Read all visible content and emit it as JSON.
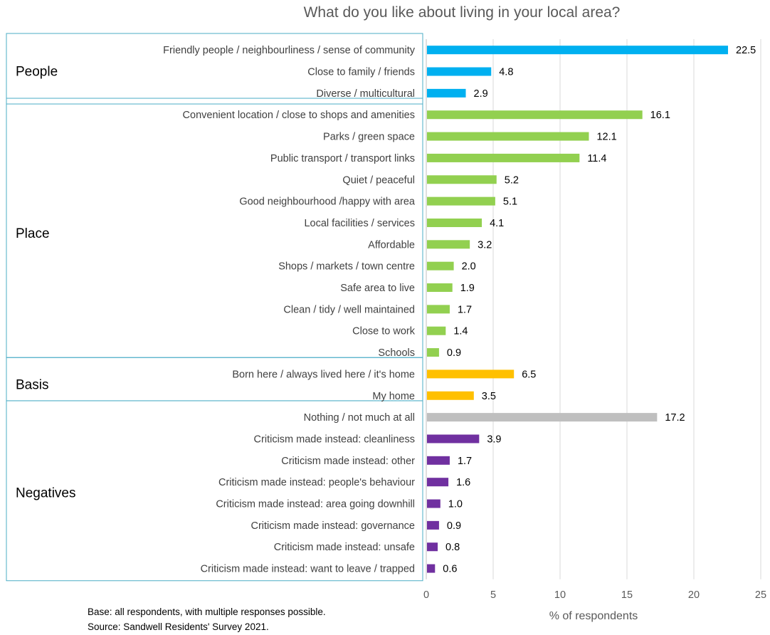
{
  "chart_data": {
    "type": "bar",
    "orientation": "horizontal",
    "title": "What do you like about living in your local area?",
    "xlabel": "% of respondents",
    "xlim": [
      0,
      25
    ],
    "xticks": [
      "0",
      "5",
      "10",
      "15",
      "20",
      "25"
    ],
    "grid": true,
    "colors": {
      "People": "#00b0f0",
      "Place": "#92d050",
      "Basis": "#ffc000",
      "Nothing": "#bfbfbf",
      "Negatives": "#7030a0",
      "group_border": "#4bacc6"
    },
    "groups": [
      {
        "name": "People",
        "items": [
          {
            "label": "Friendly people / neighbourliness / sense of community",
            "value": 22.5,
            "value_label": "22.5",
            "color": "People"
          },
          {
            "label": "Close to family / friends",
            "value": 4.8,
            "value_label": "4.8",
            "color": "People"
          },
          {
            "label": "Diverse / multicultural",
            "value": 2.9,
            "value_label": "2.9",
            "color": "People"
          }
        ]
      },
      {
        "name": "Place",
        "items": [
          {
            "label": "Convenient location / close to shops and amenities",
            "value": 16.1,
            "value_label": "16.1",
            "color": "Place"
          },
          {
            "label": "Parks / green space",
            "value": 12.1,
            "value_label": "12.1",
            "color": "Place"
          },
          {
            "label": "Public transport / transport links",
            "value": 11.4,
            "value_label": "11.4",
            "color": "Place"
          },
          {
            "label": "Quiet / peaceful",
            "value": 5.2,
            "value_label": "5.2",
            "color": "Place"
          },
          {
            "label": "Good neighbourhood /happy with area",
            "value": 5.1,
            "value_label": "5.1",
            "color": "Place"
          },
          {
            "label": "Local facilities / services",
            "value": 4.1,
            "value_label": "4.1",
            "color": "Place"
          },
          {
            "label": "Affordable",
            "value": 3.2,
            "value_label": "3.2",
            "color": "Place"
          },
          {
            "label": "Shops / markets / town centre",
            "value": 2.0,
            "value_label": "2.0",
            "color": "Place"
          },
          {
            "label": "Safe area to live",
            "value": 1.9,
            "value_label": "1.9",
            "color": "Place"
          },
          {
            "label": "Clean / tidy / well maintained",
            "value": 1.7,
            "value_label": "1.7",
            "color": "Place"
          },
          {
            "label": "Close to work",
            "value": 1.4,
            "value_label": "1.4",
            "color": "Place"
          },
          {
            "label": "Schools",
            "value": 0.9,
            "value_label": "0.9",
            "color": "Place"
          }
        ]
      },
      {
        "name": "Basis",
        "items": [
          {
            "label": "Born here / always lived here / it's home",
            "value": 6.5,
            "value_label": "6.5",
            "color": "Basis"
          },
          {
            "label": "My home",
            "value": 3.5,
            "value_label": "3.5",
            "color": "Basis"
          }
        ]
      },
      {
        "name": "Negatives",
        "items": [
          {
            "label": "Nothing / not much at all",
            "value": 17.2,
            "value_label": "17.2",
            "color": "Nothing"
          },
          {
            "label": "Criticism made instead: cleanliness",
            "value": 3.9,
            "value_label": "3.9",
            "color": "Negatives"
          },
          {
            "label": "Criticism made instead: other",
            "value": 1.7,
            "value_label": "1.7",
            "color": "Negatives"
          },
          {
            "label": "Criticism made instead: people's behaviour",
            "value": 1.6,
            "value_label": "1.6",
            "color": "Negatives"
          },
          {
            "label": "Criticism made instead: area going downhill",
            "value": 1.0,
            "value_label": "1.0",
            "color": "Negatives"
          },
          {
            "label": "Criticism made instead: governance",
            "value": 0.9,
            "value_label": "0.9",
            "color": "Negatives"
          },
          {
            "label": "Criticism made instead: unsafe",
            "value": 0.8,
            "value_label": "0.8",
            "color": "Negatives"
          },
          {
            "label": "Criticism made instead: want to leave / trapped",
            "value": 0.6,
            "value_label": "0.6",
            "color": "Negatives"
          }
        ]
      }
    ]
  },
  "notes": {
    "base": "Base: all respondents, with multiple responses possible.",
    "source": "Source: Sandwell Residents' Survey 2021."
  }
}
